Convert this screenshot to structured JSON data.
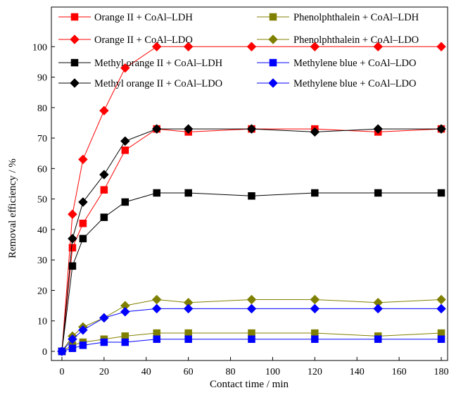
{
  "chart_data": {
    "type": "line",
    "title": "",
    "xlabel": "Contact time / min",
    "ylabel": "Removal efficiency / %",
    "xlim": [
      -5,
      183
    ],
    "ylim": [
      -3,
      113
    ],
    "xticks": [
      0,
      20,
      40,
      60,
      80,
      100,
      120,
      140,
      160,
      180
    ],
    "yticks": [
      0,
      10,
      20,
      30,
      40,
      50,
      60,
      70,
      80,
      90,
      100
    ],
    "grid": false,
    "legend_placement": "top",
    "x": [
      0,
      5,
      10,
      20,
      30,
      45,
      60,
      90,
      120,
      150,
      180
    ],
    "series": [
      {
        "name": "Orange II + CoAl–LDH",
        "color": "#ff0000",
        "marker": "square",
        "values": [
          0,
          34,
          42,
          53,
          66,
          73,
          72,
          73,
          73,
          72,
          73
        ]
      },
      {
        "name": "Orange II + CoAl–LDO",
        "color": "#ff0000",
        "marker": "diamond",
        "values": [
          0,
          45,
          63,
          79,
          93,
          100,
          100,
          100,
          100,
          100,
          100
        ]
      },
      {
        "name": "Methyl orange II + CoAl–LDH",
        "color": "#000000",
        "marker": "square",
        "values": [
          0,
          28,
          37,
          44,
          49,
          52,
          52,
          51,
          52,
          52,
          52
        ]
      },
      {
        "name": "Methyl orange II + CoAl–LDO",
        "color": "#000000",
        "marker": "diamond",
        "values": [
          0,
          37,
          49,
          58,
          69,
          73,
          73,
          73,
          72,
          73,
          73
        ]
      },
      {
        "name": "Phenolphthalein + CoAl–LDH",
        "color": "#808000",
        "marker": "square",
        "values": [
          0,
          2,
          3,
          4,
          5,
          6,
          6,
          6,
          6,
          5,
          6
        ]
      },
      {
        "name": "Phenolphthalein + CoAl–LDO",
        "color": "#808000",
        "marker": "diamond",
        "values": [
          0,
          5,
          8,
          11,
          15,
          17,
          16,
          17,
          17,
          16,
          17
        ]
      },
      {
        "name": "Methylene blue + CoAl–LDO",
        "color": "#0000ff",
        "marker": "square",
        "values": [
          0,
          1,
          2,
          3,
          3,
          4,
          4,
          4,
          4,
          4,
          4
        ]
      },
      {
        "name": "Methylene blue + CoAl–LDO",
        "color": "#0000ff",
        "marker": "diamond",
        "values": [
          0,
          4,
          7,
          11,
          13,
          14,
          14,
          14,
          14,
          14,
          14
        ]
      }
    ]
  }
}
